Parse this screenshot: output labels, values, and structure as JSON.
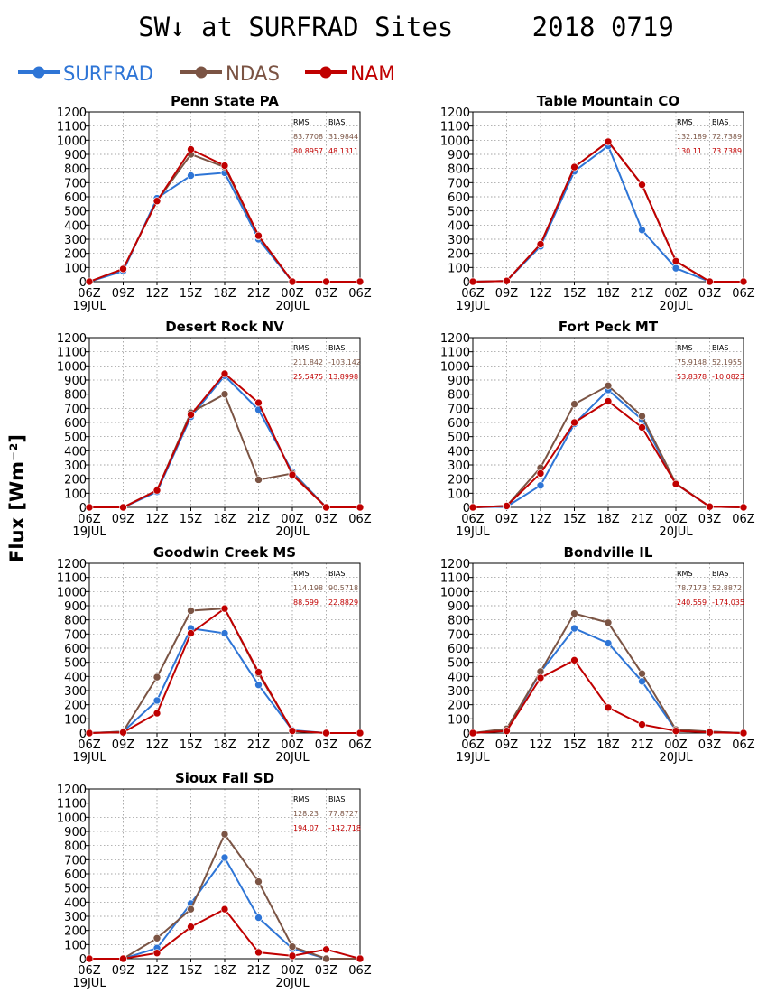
{
  "title": "SW↓ at SURFRAD Sites     2018 0719",
  "ylabel": "Flux [Wm⁻²]",
  "legend": [
    {
      "name": "SURFRAD",
      "color": "#2e75d6"
    },
    {
      "name": "NDAS",
      "color": "#7b5444"
    },
    {
      "name": "NAM",
      "color": "#c00000"
    }
  ],
  "chart_data": [
    {
      "type": "line",
      "title": "Penn State PA",
      "x": [
        "06Z",
        "09Z",
        "12Z",
        "15Z",
        "18Z",
        "21Z",
        "00Z",
        "03Z",
        "06Z"
      ],
      "date_labels": [
        "19JUL",
        "",
        "",
        "",
        "",
        "",
        "20JUL",
        "",
        ""
      ],
      "ylim": [
        0,
        1200
      ],
      "yticks": [
        0,
        100,
        200,
        300,
        400,
        500,
        600,
        700,
        800,
        900,
        1000,
        1100,
        1200
      ],
      "grid": true,
      "stats": {
        "header": [
          "RMS",
          "BIAS"
        ],
        "rows": [
          [
            "83.7708",
            "31.9844"
          ],
          [
            "80.8957",
            "48.1311"
          ]
        ]
      },
      "series": [
        {
          "name": "SURFRAD",
          "values": [
            0,
            75,
            590,
            750,
            770,
            300,
            0,
            0,
            0
          ]
        },
        {
          "name": "NDAS",
          "values": [
            0,
            90,
            570,
            900,
            810,
            320,
            0,
            0,
            0
          ]
        },
        {
          "name": "NAM",
          "values": [
            0,
            90,
            570,
            935,
            820,
            325,
            0,
            0,
            0
          ]
        }
      ]
    },
    {
      "type": "line",
      "title": "Table Mountain CO",
      "x": [
        "06Z",
        "09Z",
        "12Z",
        "15Z",
        "18Z",
        "21Z",
        "00Z",
        "03Z",
        "06Z"
      ],
      "date_labels": [
        "19JUL",
        "",
        "",
        "",
        "",
        "",
        "20JUL",
        "",
        ""
      ],
      "ylim": [
        0,
        1200
      ],
      "yticks": [
        0,
        100,
        200,
        300,
        400,
        500,
        600,
        700,
        800,
        900,
        1000,
        1100,
        1200
      ],
      "grid": true,
      "stats": {
        "header": [
          "RMS",
          "BIAS"
        ],
        "rows": [
          [
            "132.189",
            "72.7389"
          ],
          [
            "130.11",
            "73.7389"
          ]
        ]
      },
      "series": [
        {
          "name": "SURFRAD",
          "values": [
            0,
            5,
            250,
            780,
            960,
            365,
            95,
            0,
            0
          ]
        },
        {
          "name": "NDAS",
          "values": [
            0,
            5,
            265,
            810,
            990,
            685,
            145,
            0,
            0
          ]
        },
        {
          "name": "NAM",
          "values": [
            0,
            5,
            265,
            810,
            990,
            685,
            145,
            0,
            0
          ]
        }
      ]
    },
    {
      "type": "line",
      "title": "Desert Rock NV",
      "x": [
        "06Z",
        "09Z",
        "12Z",
        "15Z",
        "18Z",
        "21Z",
        "00Z",
        "03Z",
        "06Z"
      ],
      "date_labels": [
        "19JUL",
        "",
        "",
        "",
        "",
        "",
        "20JUL",
        "",
        ""
      ],
      "ylim": [
        0,
        1200
      ],
      "yticks": [
        0,
        100,
        200,
        300,
        400,
        500,
        600,
        700,
        800,
        900,
        1000,
        1100,
        1200
      ],
      "grid": true,
      "stats": {
        "header": [
          "RMS",
          "BIAS"
        ],
        "rows": [
          [
            "211.842",
            "-103.142"
          ],
          [
            "25.5475",
            "13.8998"
          ]
        ]
      },
      "series": [
        {
          "name": "SURFRAD",
          "values": [
            0,
            0,
            110,
            640,
            930,
            690,
            250,
            0,
            0
          ]
        },
        {
          "name": "NDAS",
          "values": [
            0,
            0,
            120,
            670,
            800,
            195,
            240,
            0,
            0
          ]
        },
        {
          "name": "NAM",
          "values": [
            0,
            0,
            120,
            655,
            945,
            740,
            230,
            0,
            0
          ]
        }
      ]
    },
    {
      "type": "line",
      "title": "Fort Peck MT",
      "x": [
        "06Z",
        "09Z",
        "12Z",
        "15Z",
        "18Z",
        "21Z",
        "00Z",
        "03Z",
        "06Z"
      ],
      "date_labels": [
        "19JUL",
        "",
        "",
        "",
        "",
        "",
        "20JUL",
        "",
        ""
      ],
      "ylim": [
        0,
        1200
      ],
      "yticks": [
        0,
        100,
        200,
        300,
        400,
        500,
        600,
        700,
        800,
        900,
        1000,
        1100,
        1200
      ],
      "grid": true,
      "stats": {
        "header": [
          "RMS",
          "BIAS"
        ],
        "rows": [
          [
            "75.9148",
            "52.1955"
          ],
          [
            "53.8378",
            "-10.0823"
          ]
        ]
      },
      "series": [
        {
          "name": "SURFRAD",
          "values": [
            0,
            5,
            155,
            590,
            830,
            620,
            165,
            5,
            0
          ]
        },
        {
          "name": "NDAS",
          "values": [
            0,
            10,
            280,
            730,
            860,
            645,
            170,
            5,
            0
          ]
        },
        {
          "name": "NAM",
          "values": [
            0,
            10,
            240,
            600,
            750,
            565,
            165,
            5,
            0
          ]
        }
      ]
    },
    {
      "type": "line",
      "title": "Goodwin Creek MS",
      "x": [
        "06Z",
        "09Z",
        "12Z",
        "15Z",
        "18Z",
        "21Z",
        "00Z",
        "03Z",
        "06Z"
      ],
      "date_labels": [
        "19JUL",
        "",
        "",
        "",
        "",
        "",
        "20JUL",
        "",
        ""
      ],
      "ylim": [
        0,
        1200
      ],
      "yticks": [
        0,
        100,
        200,
        300,
        400,
        500,
        600,
        700,
        800,
        900,
        1000,
        1100,
        1200
      ],
      "grid": true,
      "stats": {
        "header": [
          "RMS",
          "BIAS"
        ],
        "rows": [
          [
            "114.198",
            "90.5718"
          ],
          [
            "88.599",
            "22.8829"
          ]
        ]
      },
      "series": [
        {
          "name": "SURFRAD",
          "values": [
            0,
            10,
            230,
            740,
            705,
            340,
            20,
            0,
            0
          ]
        },
        {
          "name": "NDAS",
          "values": [
            0,
            10,
            395,
            865,
            880,
            420,
            15,
            0,
            0
          ]
        },
        {
          "name": "NAM",
          "values": [
            0,
            5,
            140,
            705,
            880,
            430,
            15,
            0,
            0
          ]
        }
      ]
    },
    {
      "type": "line",
      "title": "Bondville IL",
      "x": [
        "06Z",
        "09Z",
        "12Z",
        "15Z",
        "18Z",
        "21Z",
        "00Z",
        "03Z",
        "06Z"
      ],
      "date_labels": [
        "19JUL",
        "",
        "",
        "",
        "",
        "",
        "20JUL",
        "",
        ""
      ],
      "ylim": [
        0,
        1200
      ],
      "yticks": [
        0,
        100,
        200,
        300,
        400,
        500,
        600,
        700,
        800,
        900,
        1000,
        1100,
        1200
      ],
      "grid": true,
      "stats": {
        "header": [
          "RMS",
          "BIAS"
        ],
        "rows": [
          [
            "78.7173",
            "52.8872"
          ],
          [
            "240.559",
            "-174.035"
          ]
        ]
      },
      "series": [
        {
          "name": "SURFRAD",
          "values": [
            0,
            20,
            430,
            740,
            635,
            365,
            20,
            10,
            0
          ]
        },
        {
          "name": "NDAS",
          "values": [
            0,
            30,
            435,
            845,
            780,
            420,
            25,
            10,
            0
          ]
        },
        {
          "name": "NAM",
          "values": [
            0,
            15,
            390,
            515,
            180,
            60,
            15,
            5,
            0
          ]
        }
      ]
    },
    {
      "type": "line",
      "title": "Sioux Fall SD",
      "x": [
        "06Z",
        "09Z",
        "12Z",
        "15Z",
        "18Z",
        "21Z",
        "00Z",
        "03Z",
        "06Z"
      ],
      "date_labels": [
        "19JUL",
        "",
        "",
        "",
        "",
        "",
        "20JUL",
        "",
        ""
      ],
      "ylim": [
        0,
        1200
      ],
      "yticks": [
        0,
        100,
        200,
        300,
        400,
        500,
        600,
        700,
        800,
        900,
        1000,
        1100,
        1200
      ],
      "grid": true,
      "stats": {
        "header": [
          "RMS",
          "BIAS"
        ],
        "rows": [
          [
            "128.23",
            "77.8727"
          ],
          [
            "194.07",
            "-142.718"
          ]
        ]
      },
      "series": [
        {
          "name": "SURFRAD",
          "values": [
            0,
            0,
            75,
            390,
            715,
            290,
            70,
            0,
            0
          ]
        },
        {
          "name": "NDAS",
          "values": [
            0,
            0,
            145,
            350,
            880,
            545,
            85,
            0,
            0
          ]
        },
        {
          "name": "NAM",
          "values": [
            0,
            0,
            40,
            225,
            350,
            45,
            20,
            65,
            0
          ]
        }
      ]
    }
  ]
}
